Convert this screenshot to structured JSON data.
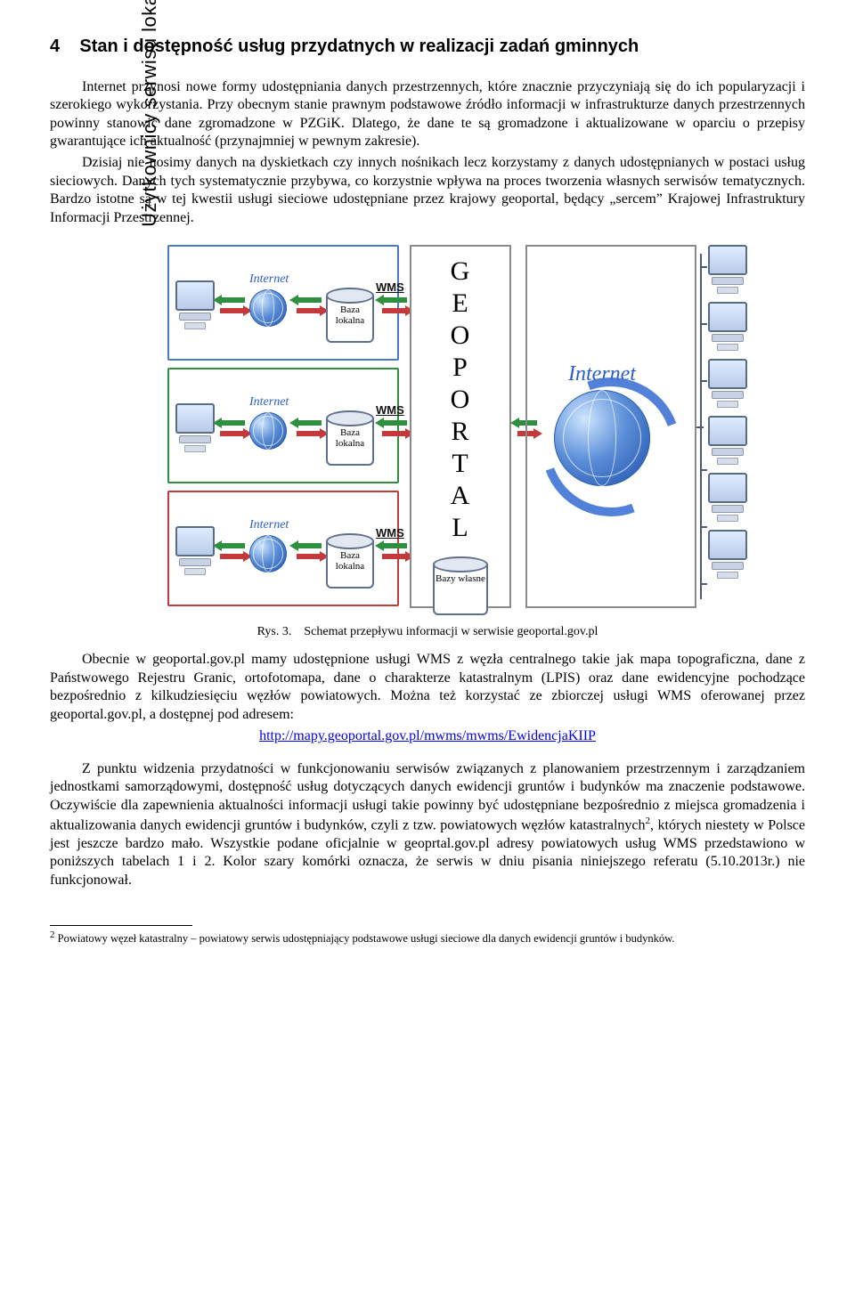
{
  "section": {
    "number": "4",
    "title": "Stan i dostępność usług przydatnych w realizacji zadań gminnych"
  },
  "para1": "Internet przynosi nowe formy udostępniania danych przestrzennych, które znacznie przyczyniają się do ich popularyzacji i szerokiego wykorzystania. Przy obecnym stanie prawnym podstawowe źródło informacji w infrastrukturze danych przestrzennych powinny stanowić dane zgromadzone w PZGiK. Dlatego, że dane te są gromadzone i aktualizowane w oparciu o przepisy gwarantujące ich aktualność (przynajmniej w pewnym zakresie).",
  "para2": "Dzisiaj nie nosimy danych na dyskietkach czy innych nośnikach lecz korzystamy z danych udostępnianych w postaci usług sieciowych. Danych tych systematycznie przybywa, co korzystnie wpływa na proces tworzenia własnych serwisów tematycznych. Bardzo istotne są w tej kwestii usługi sieciowe udostępniane przez krajowy geoportal, będący „sercem” Krajowej Infrastruktury Informacji Przestrzennej.",
  "figure": {
    "caption_label": "Rys. 3.",
    "caption_text": "Schemat przepływu informacji w serwisie geoportal.gov.pl",
    "side_label": "Użytkownicy serwisu lokalnego",
    "geoportal_letters": "GEOPORTAL",
    "internet_label": "Internet",
    "baza_lokalna": "Baza lokalna",
    "bazy_wlasne": "Bazy własne",
    "wms": "WMS",
    "colors": {
      "row1_border": "#4a78c8",
      "row2_border": "#2e8f3e",
      "row3_border": "#c43a3a",
      "arrow_green": "#2e8f3e",
      "arrow_red": "#c43a3a",
      "panel_border": "#8a8a8a",
      "globe_deep": "#1b4ea8",
      "internet_text": "#2a5fc9"
    }
  },
  "para3_a": "Obecnie w geoportal.gov.pl mamy udostępnione usługi WMS z węzła centralnego takie jak mapa topograficzna, dane z Państwowego Rejestru Granic, ortofotomapa, dane o charakterze katastralnym (LPIS) oraz dane ewidencyjne pochodzące bezpośrednio z kilkudziesięciu węzłów powiatowych. Można też korzystać ze zbiorczej usługi WMS oferowanej przez geoportal.gov.pl, a dostępnej pod adresem:",
  "url": "http://mapy.geoportal.gov.pl/mwms/mwms/EwidencjaKIIP",
  "para4_a": "Z punktu widzenia przydatności w funkcjonowaniu serwisów związanych z planowaniem przestrzennym i zarządzaniem jednostkami samorządowymi, dostępność usług dotyczących danych ewidencji gruntów i budynków ma znaczenie podstawowe. Oczywiście dla zapewnienia aktualności informacji usługi takie powinny być udostępniane bezpośrednio z miejsca gromadzenia i aktualizowania danych ewidencji gruntów i budynków, czyli z tzw. powiatowych węzłów katastralnych",
  "para4_b": ", których niestety w Polsce jest jeszcze bardzo mało. Wszystkie podane oficjalnie w geoprtal.gov.pl adresy powiatowych usług WMS przedstawiono w poniższych tabelach 1 i 2. Kolor szary komórki oznacza, że serwis w dniu pisania niniejszego referatu (5.10.2013r.) nie funkcjonował.",
  "footnote": {
    "marker": "2",
    "text": "Powiatowy węzeł katastralny – powiatowy serwis udostępniający podstawowe usługi sieciowe dla danych ewidencji gruntów i budynków."
  }
}
